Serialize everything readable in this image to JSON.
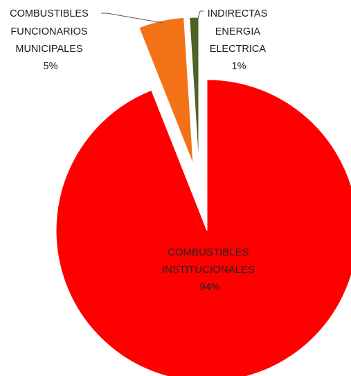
{
  "chart_data": {
    "type": "pie",
    "slices": [
      {
        "label_lines": [
          "COMBUSTIBLES",
          "INSTITUCIONALES"
        ],
        "value_text": "94%",
        "value": 94,
        "color": "#ff0000"
      },
      {
        "label_lines": [
          "COMBUSTIBLES",
          "FUNCIONARIOS",
          "MUNICIPALES"
        ],
        "value_text": "5%",
        "value": 5,
        "color": "#f47216"
      },
      {
        "label_lines": [
          "INDIRECTAS",
          "ENERGIA",
          "ELECTRICA"
        ],
        "value_text": "1%",
        "value": 1,
        "color": "#4f6228"
      }
    ],
    "exploded": true,
    "legend": "none"
  }
}
